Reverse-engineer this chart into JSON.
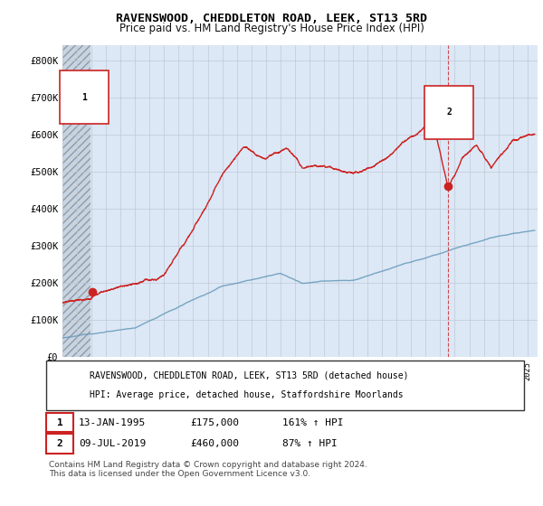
{
  "title": "RAVENSWOOD, CHEDDLETON ROAD, LEEK, ST13 5RD",
  "subtitle": "Price paid vs. HM Land Registry's House Price Index (HPI)",
  "ylim": [
    0,
    840000
  ],
  "yticks": [
    0,
    100000,
    200000,
    300000,
    400000,
    500000,
    600000,
    700000,
    800000
  ],
  "ytick_labels": [
    "£0",
    "£100K",
    "£200K",
    "£300K",
    "£400K",
    "£500K",
    "£600K",
    "£700K",
    "£800K"
  ],
  "xlim_start": 1993.0,
  "xlim_end": 2025.7,
  "background_color": "#ffffff",
  "plot_bg": "#dce8f5",
  "hatch_color": "#c5d5e5",
  "grid_color": "#c0c8d8",
  "red_color": "#cc2222",
  "blue_color": "#6699bb",
  "point1_x": 1995.04,
  "point1_y": 175000,
  "point2_x": 2019.52,
  "point2_y": 460000,
  "legend_label_red": "RAVENSWOOD, CHEDDLETON ROAD, LEEK, ST13 5RD (detached house)",
  "legend_label_blue": "HPI: Average price, detached house, Staffordshire Moorlands",
  "footer": "Contains HM Land Registry data © Crown copyright and database right 2024.\nThis data is licensed under the Open Government Licence v3.0."
}
